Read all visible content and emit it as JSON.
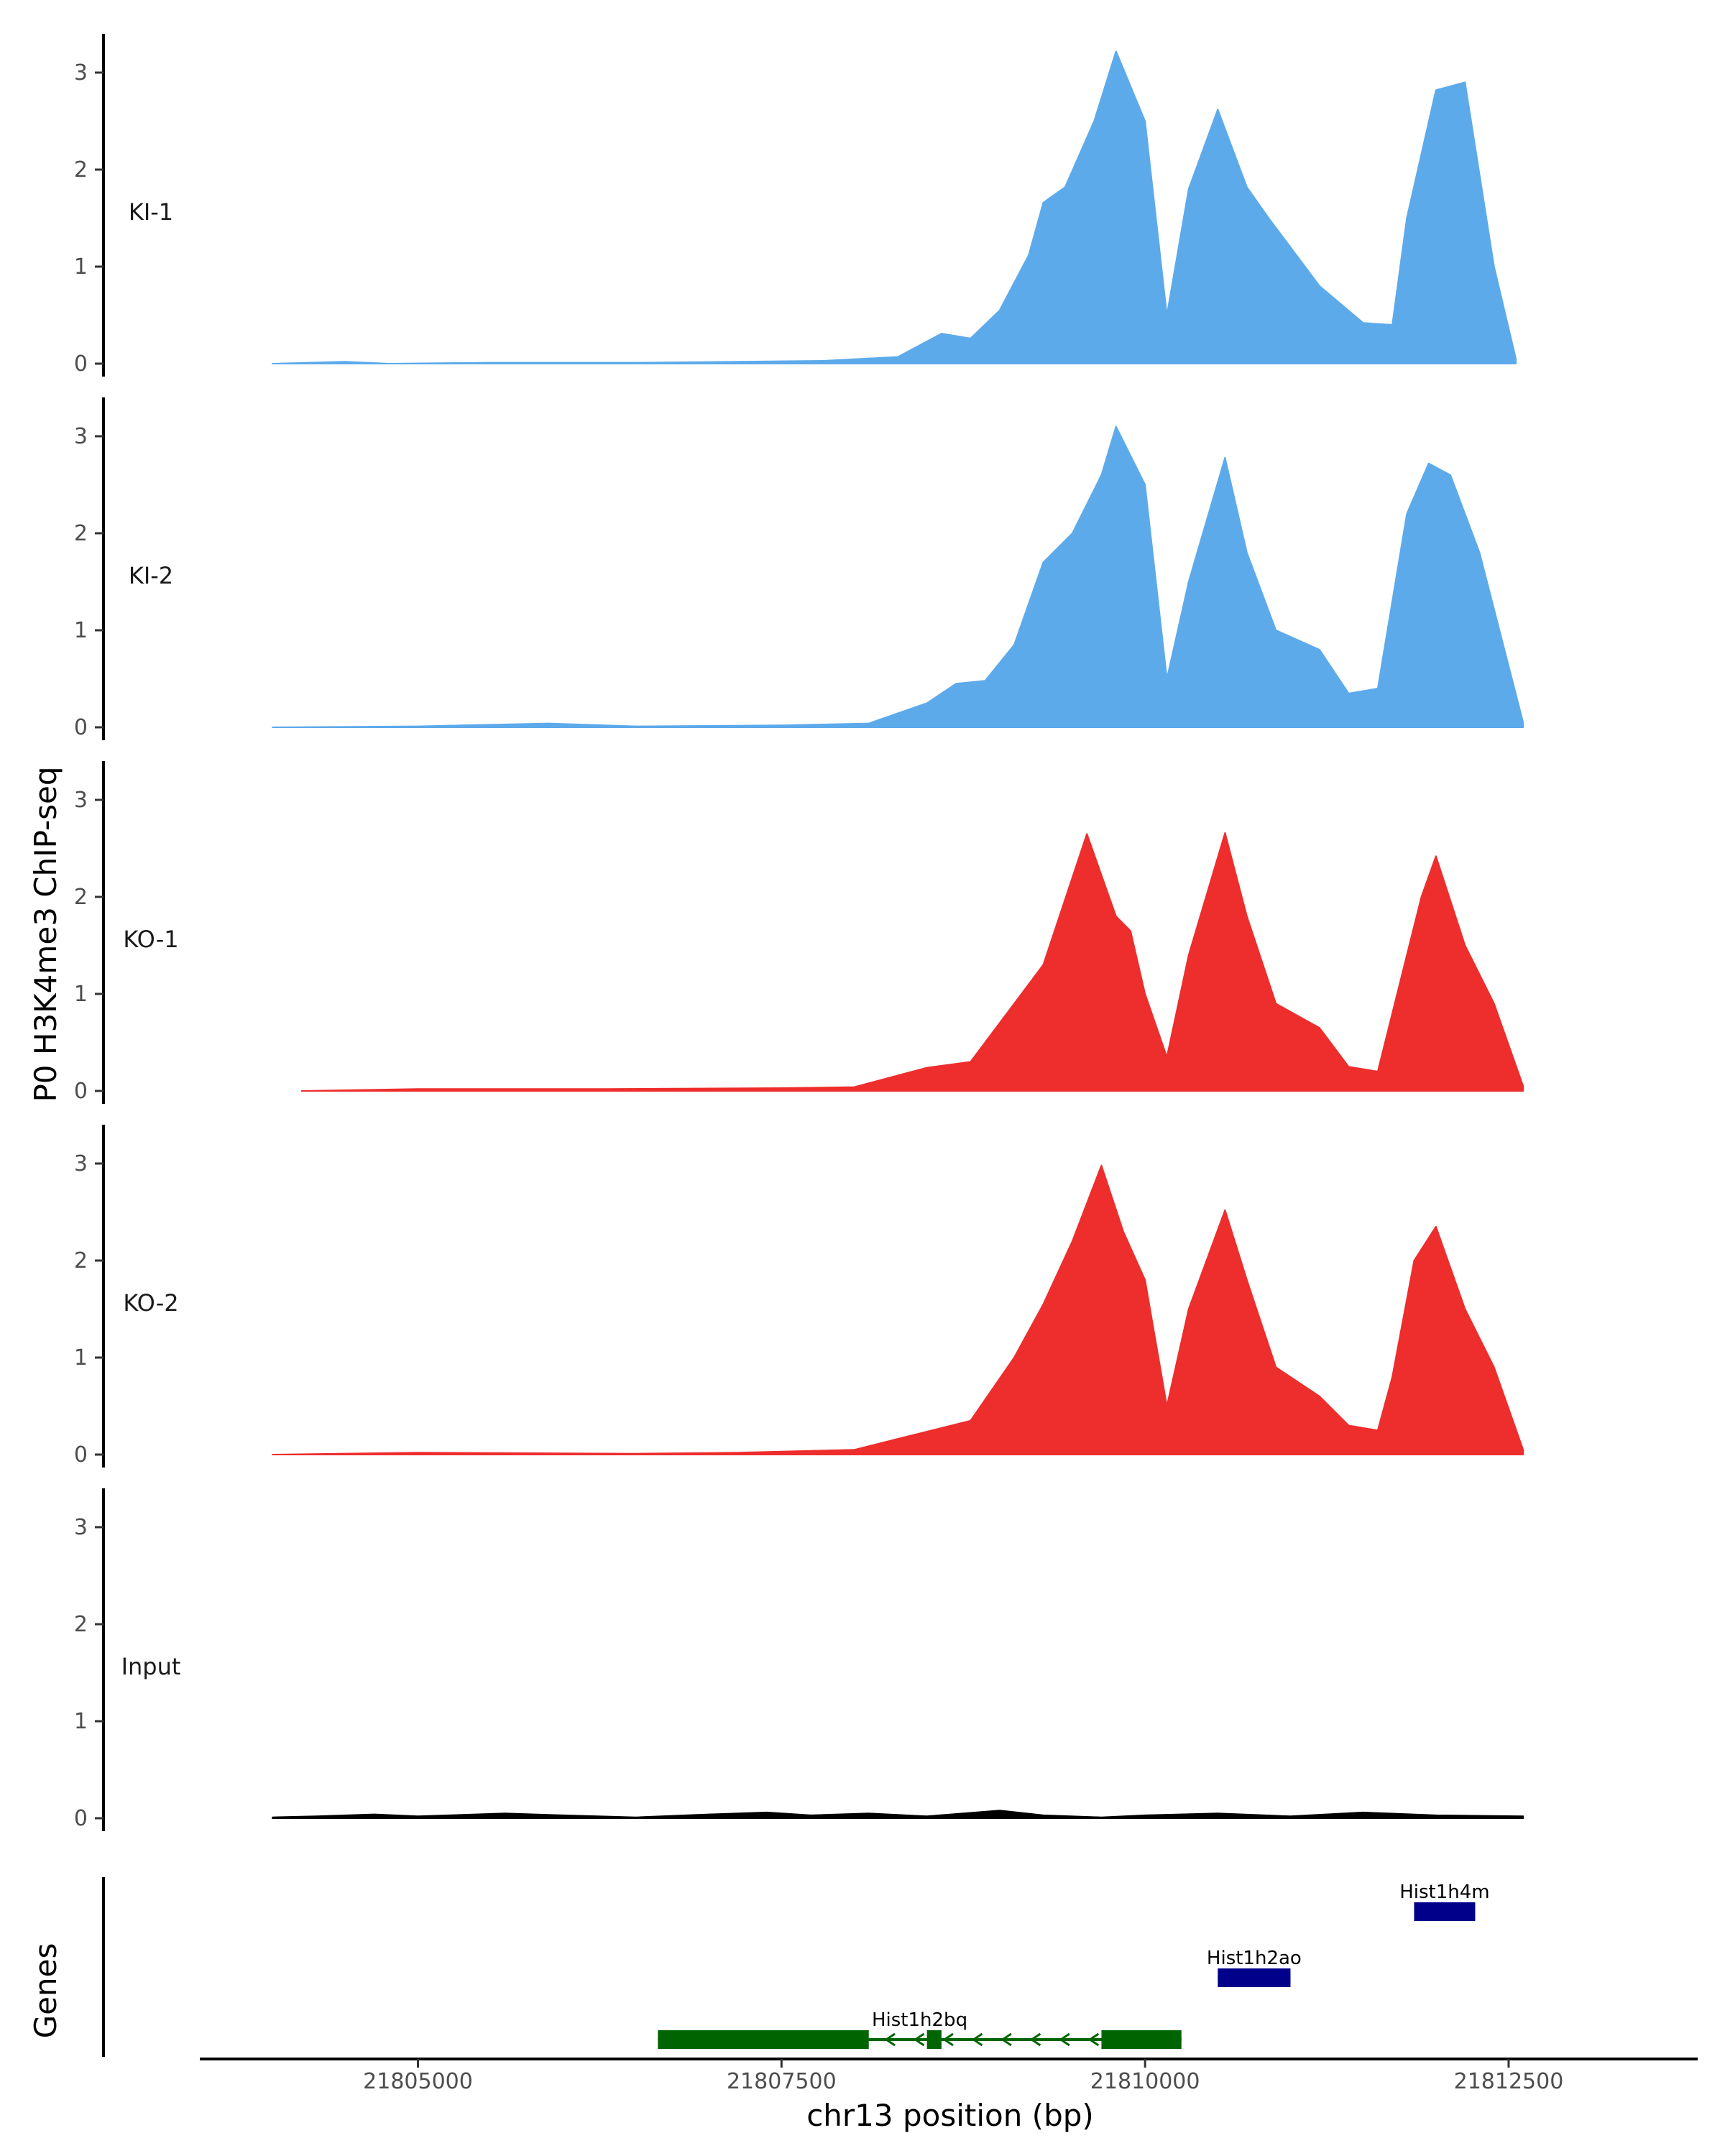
{
  "chart_data": {
    "type": "area",
    "ylabel": "P0 H3K4me3 ChIP-seq",
    "xlabel": "chr13 position (bp)",
    "ylim": [
      0,
      3.4
    ],
    "yticks": [
      0,
      1,
      2,
      3
    ],
    "xlim": [
      21803500,
      21813800
    ],
    "xticks": [
      21805000,
      21807500,
      21810000,
      21812500
    ],
    "xtick_labels": [
      "21805000",
      "21807500",
      "21810000",
      "21812500"
    ],
    "grid": false,
    "colors": {
      "KI": "#5DAAEB",
      "KO": "#EE2D2D",
      "Input": "#000000",
      "gene_minus": "#006400",
      "gene_plus": "#00008B"
    },
    "series": [
      {
        "name": "KI-1",
        "color": "#5DAAEB",
        "x": [
          21804000,
          21804500,
          21804800,
          21805500,
          21806500,
          21807200,
          21807800,
          21808300,
          21808600,
          21808800,
          21809000,
          21809200,
          21809300,
          21809450,
          21809650,
          21809800,
          21810000,
          21810150,
          21810300,
          21810500,
          21810700,
          21810850,
          21811000,
          21811200,
          21811500,
          21811700,
          21811800,
          21812000,
          21812200,
          21812400,
          21812550
        ],
        "y": [
          0,
          0.02,
          0,
          0.01,
          0.01,
          0.02,
          0.03,
          0.07,
          0.31,
          0.26,
          0.55,
          1.12,
          1.66,
          1.82,
          2.5,
          3.22,
          2.5,
          0.5,
          1.8,
          2.62,
          1.82,
          1.5,
          1.2,
          0.8,
          0.42,
          0.4,
          1.5,
          2.82,
          2.9,
          1.0,
          0.05
        ]
      },
      {
        "name": "KI-2",
        "color": "#5DAAEB",
        "x": [
          21804000,
          21805000,
          21805900,
          21806500,
          21807500,
          21808100,
          21808500,
          21808700,
          21808900,
          21809100,
          21809300,
          21809500,
          21809700,
          21809800,
          21810000,
          21810150,
          21810300,
          21810550,
          21810700,
          21810900,
          21811200,
          21811400,
          21811600,
          21811800,
          21811950,
          21812100,
          21812300,
          21812600
        ],
        "y": [
          0,
          0.01,
          0.04,
          0.01,
          0.02,
          0.04,
          0.25,
          0.45,
          0.48,
          0.85,
          1.7,
          2.0,
          2.6,
          3.1,
          2.5,
          0.5,
          1.5,
          2.78,
          1.8,
          1.0,
          0.8,
          0.35,
          0.4,
          2.2,
          2.72,
          2.6,
          1.8,
          0.05
        ]
      },
      {
        "name": "KO-1",
        "color": "#EE2D2D",
        "x": [
          21804200,
          21805000,
          21806300,
          21807500,
          21808000,
          21808500,
          21808800,
          21809100,
          21809300,
          21809500,
          21809600,
          21809800,
          21809900,
          21810000,
          21810150,
          21810300,
          21810550,
          21810700,
          21810900,
          21811200,
          21811400,
          21811600,
          21811700,
          21811900,
          21812000,
          21812200,
          21812400,
          21812600
        ],
        "y": [
          0,
          0.02,
          0.02,
          0.03,
          0.04,
          0.24,
          0.3,
          0.9,
          1.3,
          2.2,
          2.65,
          1.8,
          1.65,
          1.0,
          0.35,
          1.4,
          2.66,
          1.8,
          0.9,
          0.65,
          0.25,
          0.2,
          0.8,
          2.0,
          2.42,
          1.5,
          0.9,
          0.05
        ]
      },
      {
        "name": "KO-2",
        "color": "#EE2D2D",
        "x": [
          21804000,
          21805000,
          21806500,
          21807200,
          21808000,
          21808400,
          21808800,
          21809100,
          21809300,
          21809500,
          21809700,
          21809850,
          21810000,
          21810150,
          21810300,
          21810550,
          21810700,
          21810900,
          21811200,
          21811400,
          21811600,
          21811700,
          21811850,
          21812000,
          21812200,
          21812400,
          21812600
        ],
        "y": [
          0,
          0.02,
          0.01,
          0.02,
          0.05,
          0.2,
          0.35,
          1.0,
          1.55,
          2.2,
          2.98,
          2.3,
          1.8,
          0.5,
          1.5,
          2.52,
          1.8,
          0.9,
          0.6,
          0.3,
          0.25,
          0.8,
          2.0,
          2.35,
          1.5,
          0.9,
          0.05
        ]
      },
      {
        "name": "Input",
        "color": "#000000",
        "x": [
          21804000,
          21804300,
          21804700,
          21805000,
          21805600,
          21806000,
          21806500,
          21807000,
          21807400,
          21807700,
          21808100,
          21808500,
          21809000,
          21809300,
          21809700,
          21810000,
          21810500,
          21811000,
          21811500,
          21812000,
          21812600
        ],
        "y": [
          0.01,
          0.02,
          0.04,
          0.02,
          0.05,
          0.03,
          0.01,
          0.04,
          0.06,
          0.03,
          0.05,
          0.02,
          0.08,
          0.03,
          0.01,
          0.03,
          0.05,
          0.02,
          0.06,
          0.03,
          0.02
        ]
      }
    ],
    "genes": [
      {
        "name": "Hist1h2bq",
        "start": 21806650,
        "end": 21810250,
        "strand": "-",
        "row": 1,
        "color": "#006400",
        "exons": [
          [
            21806650,
            21808100
          ],
          [
            21808500,
            21808600
          ],
          [
            21809700,
            21810250
          ]
        ]
      },
      {
        "name": "Hist1h2ao",
        "start": 21810500,
        "end": 21811000,
        "strand": "+",
        "row": 2,
        "color": "#00008B",
        "exons": [
          [
            21810500,
            21811000
          ]
        ]
      },
      {
        "name": "Hist1h4m",
        "start": 21811850,
        "end": 21812270,
        "strand": "+",
        "row": 3,
        "color": "#00008B",
        "exons": [
          [
            21811850,
            21812270
          ]
        ]
      }
    ],
    "genes_panel_label": "Genes"
  }
}
